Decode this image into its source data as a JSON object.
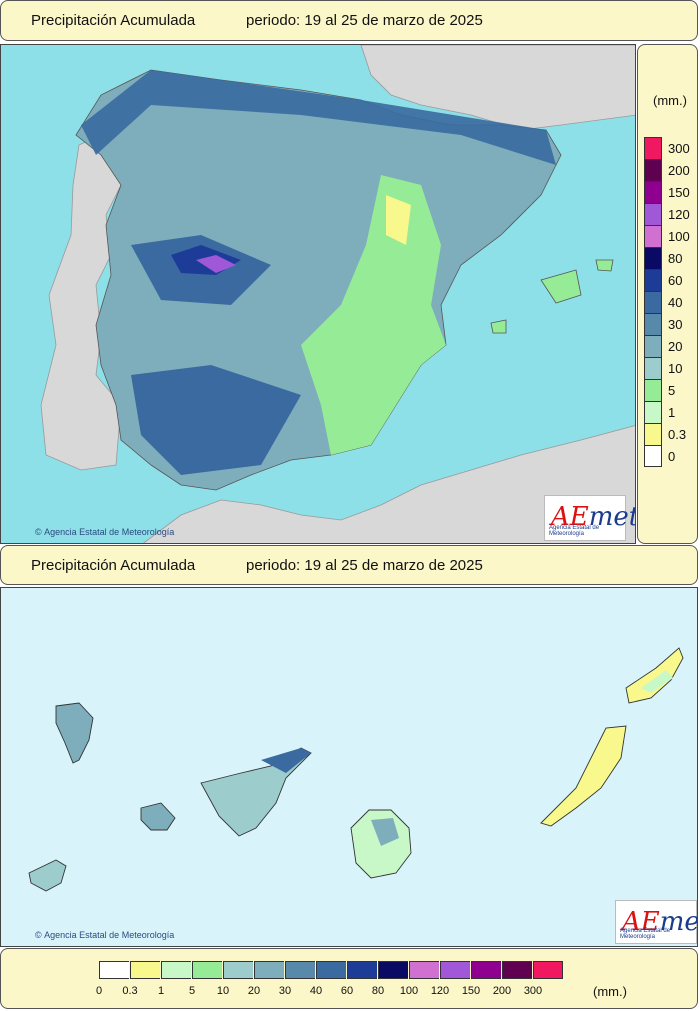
{
  "top_panel": {
    "title": "Precipitación Acumulada",
    "period": "periodo: 19 al 25 de marzo de 2025"
  },
  "bottom_panel": {
    "title": "Precipitación Acumulada",
    "period": "periodo: 19 al 25 de marzo de 2025"
  },
  "units": "(mm.)",
  "credit": "Agencia Estatal de Meteorología",
  "logo": {
    "brand_a": "A",
    "brand_e": "E",
    "brand_rest": "met",
    "subtitle": "Agencia Estatal de Meteorología"
  },
  "legend": {
    "labels": [
      "0",
      "0.3",
      "1",
      "5",
      "10",
      "20",
      "30",
      "40",
      "60",
      "80",
      "100",
      "120",
      "150",
      "200",
      "300"
    ],
    "colors": [
      "#ffffff",
      "#f8f88c",
      "#c8f8c8",
      "#96ec96",
      "#9ccccc",
      "#7eaebc",
      "#5888aa",
      "#3a6aa0",
      "#1c3c98",
      "#0a0a64",
      "#d070d0",
      "#a058d8",
      "#900090",
      "#600050",
      "#f01860"
    ]
  },
  "colors": {
    "sea": "#8ee0e8",
    "land_foreign": "#d8d8d8",
    "panel_bg": "#fbf7c8",
    "canary_sea": "#d8f4fa"
  }
}
